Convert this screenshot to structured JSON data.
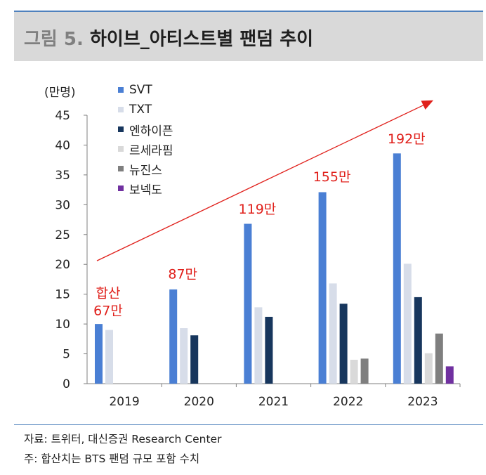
{
  "header": {
    "fig_number": "그림 5.",
    "title": "하이브_아티스트별 팬덤 추이"
  },
  "footer": {
    "source": "자료: 트위터, 대신증권 Research Center",
    "note": "주: 합산치는 BTS 팬덤 규모 포함 수치"
  },
  "colors": {
    "accent_rule": "#4f81bd",
    "annotation": "#e0201b",
    "title_bar": "#d9d9d9"
  },
  "chart_data": {
    "type": "bar",
    "unit_label": "(만명)",
    "categories": [
      "2019",
      "2020",
      "2021",
      "2022",
      "2023"
    ],
    "ylim": [
      0,
      45
    ],
    "yticks": [
      "0",
      "5",
      "10",
      "15",
      "20",
      "25",
      "30",
      "35",
      "40",
      "45"
    ],
    "grid": false,
    "legend_position": "top-left",
    "series": [
      {
        "name": "SVT",
        "color": "#4a7fd4",
        "values": [
          10,
          15.8,
          26.8,
          32.1,
          38.6
        ]
      },
      {
        "name": "TXT",
        "color": "#d7dde9",
        "values": [
          9,
          9.3,
          12.8,
          16.8,
          20.1
        ]
      },
      {
        "name": "엔하이픈",
        "color": "#17365d",
        "values": [
          0,
          8.1,
          11.2,
          13.4,
          14.5
        ]
      },
      {
        "name": "르세라핌",
        "color": "#d9d9d9",
        "values": [
          0,
          0,
          0,
          4,
          5.1
        ]
      },
      {
        "name": "뉴진스",
        "color": "#7f7f7f",
        "values": [
          0,
          0,
          0,
          4.2,
          8.4
        ]
      },
      {
        "name": "보넥도",
        "color": "#7030a0",
        "values": [
          0,
          0,
          0,
          0,
          2.9
        ]
      }
    ],
    "annotations": [
      {
        "category": "2019",
        "lines": [
          "합산",
          "67만"
        ],
        "y": 11.5
      },
      {
        "category": "2020",
        "lines": [
          "87만"
        ],
        "y": 17.6
      },
      {
        "category": "2021",
        "lines": [
          "119만"
        ],
        "y": 28.5
      },
      {
        "category": "2022",
        "lines": [
          "155만"
        ],
        "y": 33.9
      },
      {
        "category": "2023",
        "lines": [
          "192만"
        ],
        "y": 40.3
      }
    ],
    "trend_arrow": {
      "from": {
        "category": "2019",
        "y": 20.6
      },
      "to": {
        "category": "2023",
        "y": 47.5
      }
    }
  }
}
